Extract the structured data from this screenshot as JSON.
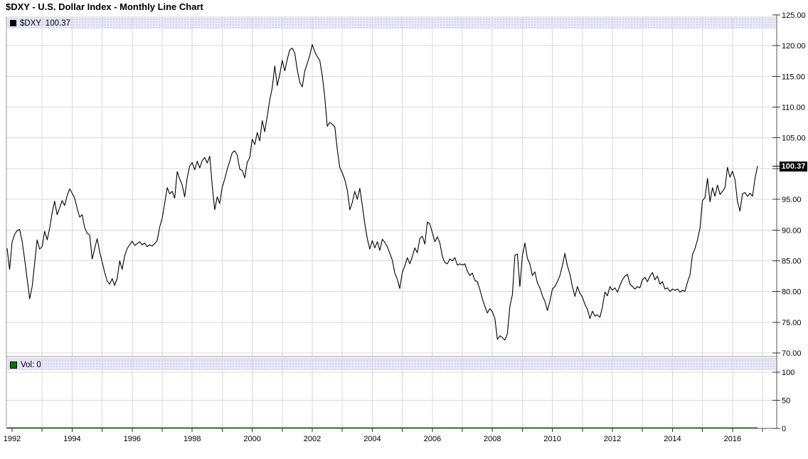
{
  "title": "$DXY - U.S. Dollar Index - Monthly Line Chart",
  "price_panel": {
    "legend_label": "$DXY: 100.37",
    "legend_swatch_color": "#000000",
    "last_price_box": "100.37",
    "y_axis_labels": [
      "125.00",
      "120.00",
      "115.00",
      "110.00",
      "105.00",
      "100.00",
      "95.00",
      "90.00",
      "85.00",
      "80.00",
      "75.00",
      "70.00"
    ]
  },
  "volume_panel": {
    "legend_label": "Vol: 0",
    "legend_swatch_color": "#007700",
    "y_axis_labels": [
      "100",
      "50",
      "0"
    ]
  },
  "x_axis": {
    "year_labels": [
      "1992",
      "1994",
      "1996",
      "1998",
      "2000",
      "2002",
      "2004",
      "2006",
      "2008",
      "2010",
      "2012",
      "2014",
      "2016"
    ]
  },
  "colors": {
    "line": "#000000",
    "grid": "#d9d9d9",
    "axis": "#555555",
    "panel_border": "#999999",
    "legend_bg": "#e9e9f8",
    "box_bg": "#000000",
    "box_text": "#ffffff",
    "volume_line": "#007700"
  },
  "chart_data": {
    "type": "line",
    "title": "$DXY - U.S. Dollar Index - Monthly Line Chart",
    "symbol": "$DXY",
    "interval": "monthly",
    "start_month": "1991-11",
    "end_month": "2016-11",
    "last_value": 100.37,
    "ylabel": "",
    "xlabel": "",
    "ylim": [
      70,
      125
    ],
    "y_tick_step": 5,
    "grid": true,
    "legend_position": "top-left",
    "x_tick_years_labeled": [
      1992,
      1994,
      1996,
      1998,
      2000,
      2002,
      2004,
      2006,
      2008,
      2010,
      2012,
      2014,
      2016
    ],
    "values": [
      87.0,
      83.6,
      88.0,
      89.3,
      89.9,
      90.1,
      88.2,
      85.3,
      82.1,
      78.8,
      80.8,
      84.6,
      88.4,
      86.9,
      87.3,
      89.8,
      88.4,
      90.3,
      92.8,
      94.7,
      92.5,
      93.6,
      94.8,
      94.0,
      95.6,
      96.7,
      96.0,
      95.2,
      93.5,
      92.1,
      92.5,
      90.4,
      89.5,
      89.2,
      85.3,
      87.0,
      88.6,
      86.5,
      84.8,
      83.1,
      81.7,
      81.2,
      82.1,
      81.0,
      82.1,
      85.0,
      83.6,
      85.8,
      87.0,
      87.6,
      88.2,
      87.5,
      87.8,
      88.1,
      87.6,
      87.9,
      87.3,
      87.6,
      87.4,
      87.8,
      88.3,
      90.5,
      91.9,
      94.4,
      96.9,
      95.9,
      96.3,
      95.2,
      99.5,
      98.3,
      97.3,
      95.4,
      98.5,
      100.4,
      101.0,
      99.8,
      101.2,
      100.1,
      101.3,
      101.8,
      100.9,
      102.0,
      97.2,
      93.3,
      95.4,
      94.3,
      97.0,
      98.3,
      99.9,
      101.2,
      102.6,
      102.9,
      102.2,
      99.9,
      99.7,
      98.5,
      101.0,
      101.8,
      104.8,
      103.9,
      105.9,
      104.5,
      107.8,
      106.0,
      108.5,
      111.2,
      113.2,
      116.7,
      113.5,
      115.3,
      117.6,
      115.9,
      117.8,
      119.3,
      119.6,
      118.8,
      116.1,
      114.0,
      113.3,
      115.9,
      117.1,
      118.4,
      120.2,
      119.0,
      118.2,
      117.6,
      115.1,
      111.6,
      106.9,
      107.5,
      107.2,
      106.8,
      103.1,
      100.2,
      99.3,
      98.2,
      96.5,
      93.3,
      94.5,
      96.3,
      95.0,
      96.8,
      94.0,
      91.0,
      88.6,
      86.9,
      88.3,
      87.1,
      88.1,
      86.7,
      88.5,
      88.0,
      87.3,
      86.2,
      85.1,
      83.0,
      82.0,
      80.5,
      83.1,
      84.2,
      85.5,
      84.5,
      85.7,
      87.1,
      86.3,
      88.6,
      89.0,
      87.7,
      91.3,
      91.0,
      89.6,
      88.1,
      88.9,
      87.9,
      85.7,
      84.7,
      84.5,
      85.3,
      85.0,
      85.5,
      84.3,
      84.5,
      84.3,
      84.5,
      83.3,
      82.6,
      83.0,
      81.8,
      81.6,
      80.3,
      78.8,
      77.6,
      76.5,
      77.2,
      76.7,
      75.6,
      72.2,
      72.8,
      72.5,
      72.1,
      73.1,
      77.6,
      79.5,
      85.9,
      86.1,
      80.8,
      85.8,
      87.9,
      85.4,
      84.5,
      82.6,
      83.2,
      81.4,
      80.6,
      79.3,
      78.4,
      76.9,
      78.4,
      80.4,
      80.8,
      81.6,
      82.6,
      84.2,
      86.2,
      84.2,
      82.8,
      80.8,
      79.2,
      80.8,
      79.7,
      79.1,
      77.9,
      77.1,
      75.6,
      76.8,
      76.0,
      76.2,
      75.8,
      77.5,
      79.9,
      79.3,
      80.8,
      80.2,
      80.6,
      79.9,
      81.0,
      81.9,
      82.5,
      82.8,
      81.2,
      80.8,
      80.4,
      80.8,
      80.6,
      81.9,
      82.3,
      81.6,
      82.5,
      83.1,
      81.9,
      82.5,
      81.2,
      81.6,
      80.4,
      80.6,
      80.0,
      80.4,
      80.2,
      80.4,
      79.9,
      80.2,
      80.0,
      81.5,
      82.7,
      86.0,
      87.0,
      88.4,
      90.3,
      94.8,
      95.3,
      98.4,
      94.6,
      96.9,
      95.5,
      97.3,
      95.8,
      96.3,
      96.9,
      100.2,
      98.6,
      99.6,
      98.2,
      94.6,
      93.1,
      95.9,
      96.1,
      95.5,
      96.0,
      95.5,
      98.4,
      100.37
    ],
    "volume": {
      "label": "Vol: 0",
      "value": 0,
      "y_ticks": [
        100,
        50,
        0
      ]
    }
  }
}
